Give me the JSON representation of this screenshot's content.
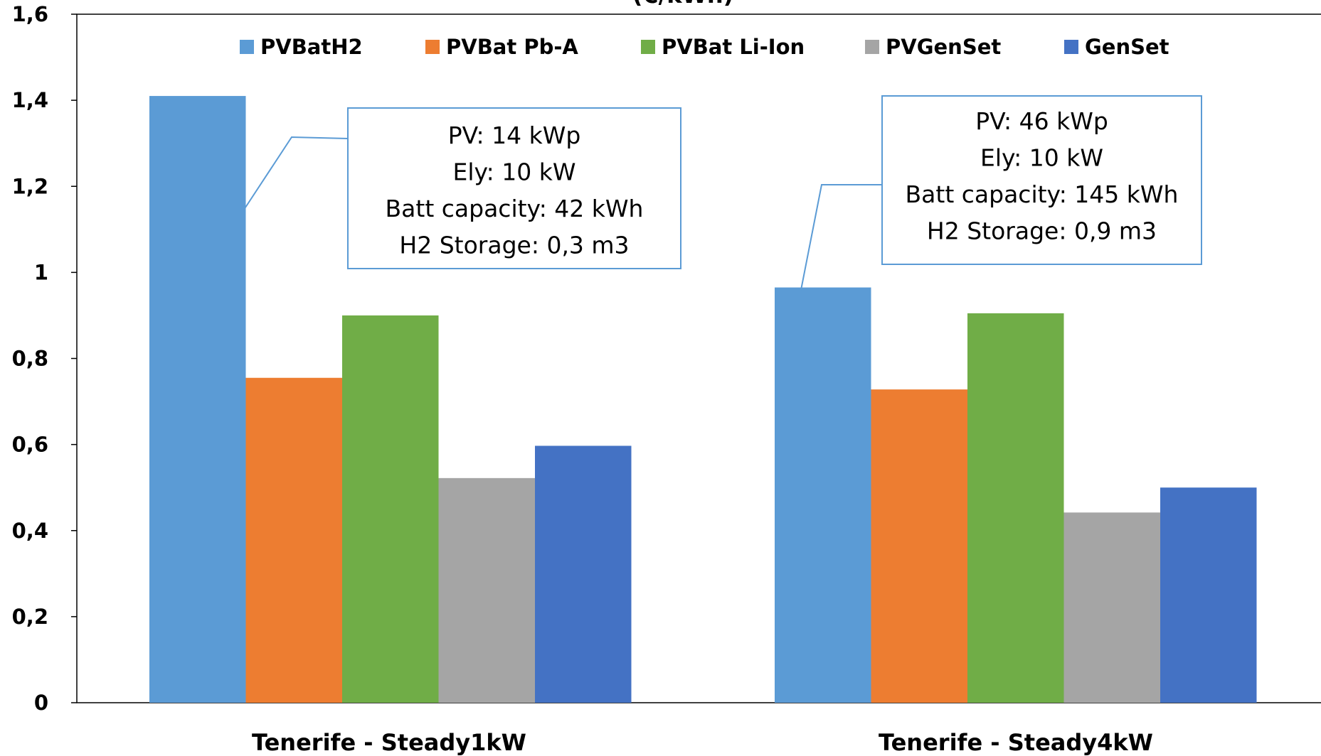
{
  "chart_data": {
    "type": "bar",
    "title": "(€/kWh)",
    "categories": [
      "Tenerife - Steady1kW",
      "Tenerife - Steady4kW"
    ],
    "series": [
      {
        "name": "PVBatH2",
        "color": "#5B9BD5",
        "values": [
          1.41,
          0.965
        ]
      },
      {
        "name": "PVBat Pb-A",
        "color": "#ED7D31",
        "values": [
          0.755,
          0.728
        ]
      },
      {
        "name": "PVBat Li-Ion",
        "color": "#70AD47",
        "values": [
          0.9,
          0.905
        ]
      },
      {
        "name": "PVGenSet",
        "color": "#A5A5A5",
        "values": [
          0.522,
          0.442
        ]
      },
      {
        "name": "GenSet",
        "color": "#4472C4",
        "values": [
          0.597,
          0.5
        ]
      }
    ],
    "ylim": [
      0,
      1.6
    ],
    "yticks": [
      "0",
      "0,2",
      "0,4",
      "0,6",
      "0,8",
      "1",
      "1,2",
      "1,4",
      "1,6"
    ],
    "ytick_values": [
      0,
      0.2,
      0.4,
      0.6,
      0.8,
      1.0,
      1.2,
      1.4,
      1.6
    ],
    "grid": false,
    "legend_position": "top",
    "annotations": [
      {
        "category": "Tenerife - Steady1kW",
        "series": "PVBatH2",
        "lines": [
          "PV: 14 kWp",
          "Ely: 10 kW",
          "Batt capacity: 42 kWh",
          "H2 Storage: 0,3 m3"
        ]
      },
      {
        "category": "Tenerife - Steady4kW",
        "series": "PVBatH2",
        "lines": [
          "PV: 46 kWp",
          "Ely: 10 kW",
          "Batt capacity: 145 kWh",
          "H2 Storage: 0,9 m3"
        ]
      }
    ]
  }
}
